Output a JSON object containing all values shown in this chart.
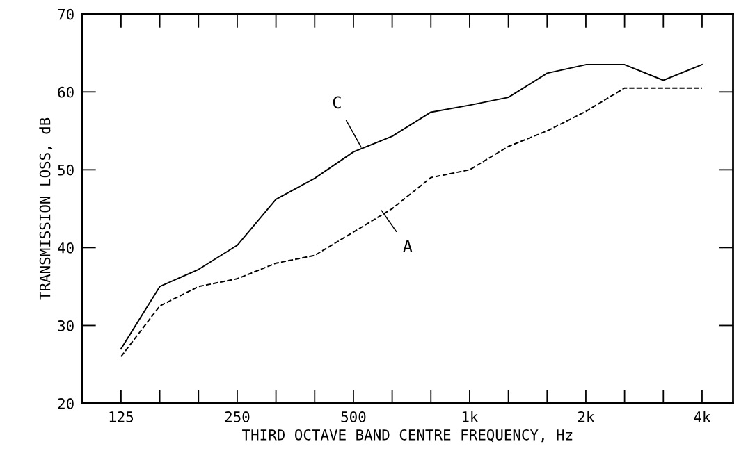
{
  "chart_data": {
    "type": "line",
    "xlabel": "THIRD OCTAVE BAND CENTRE FREQUENCY, Hz",
    "ylabel": "TRANSMISSION LOSS, dB",
    "categories": [
      "125",
      null,
      null,
      "250",
      null,
      null,
      "500",
      null,
      null,
      "1k",
      null,
      null,
      "2k",
      null,
      null,
      "4k"
    ],
    "series": [
      {
        "color": "#000000",
        "line_style": "solid",
        "values": [
          27,
          35,
          37.2,
          40.3,
          46.2,
          48.9,
          52.3,
          54.3,
          57.4,
          58.3,
          59.3,
          62.4,
          63.5,
          63.5,
          61.5,
          63.5
        ]
      },
      {
        "color": "#000000",
        "line_style": "dashed",
        "values": [
          26,
          32.5,
          35,
          36,
          38,
          39,
          42,
          45,
          49,
          50,
          53,
          55,
          57.5,
          60.5,
          60.5,
          60.5
        ]
      }
    ],
    "annotations": [
      {
        "text": "C",
        "x": "500",
        "y": 52.3
      },
      "A"
    ],
    "ylim": [
      20,
      70
    ],
    "yticks": [
      20,
      30,
      40,
      50,
      60,
      70
    ],
    "grid": false,
    "legend": false,
    "marker": "none"
  }
}
